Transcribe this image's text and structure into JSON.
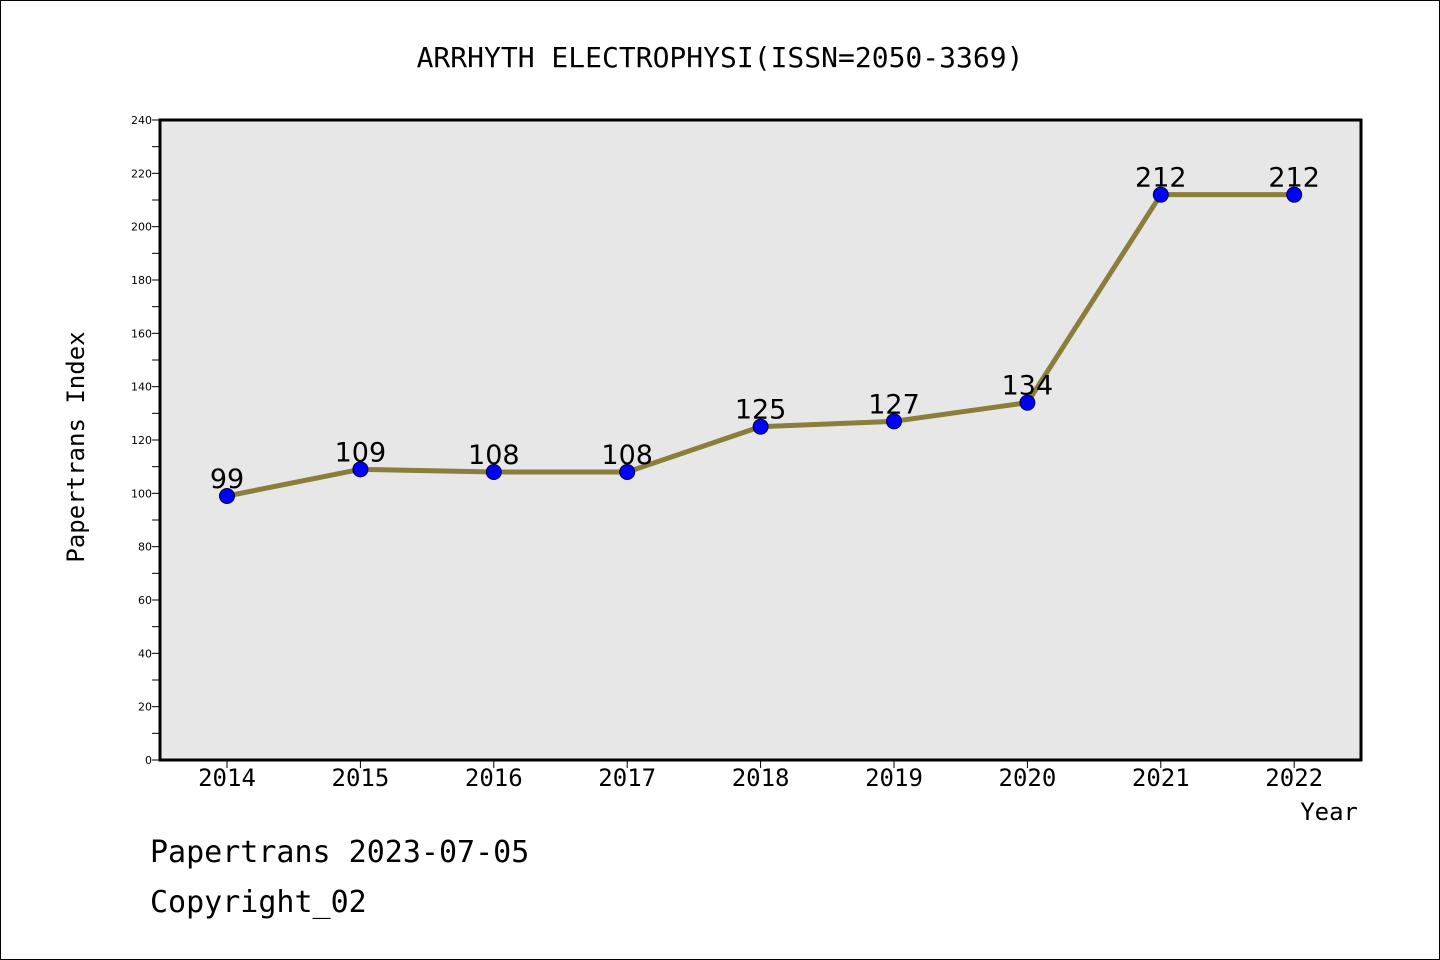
{
  "chart_data": {
    "type": "line",
    "title": "ARRHYTH ELECTROPHYSI(ISSN=2050-3369)",
    "xlabel": "Year",
    "ylabel": "Papertrans Index",
    "categories": [
      "2014",
      "2015",
      "2016",
      "2017",
      "2018",
      "2019",
      "2020",
      "2021",
      "2022"
    ],
    "series": [
      {
        "values": [
          99,
          109,
          108,
          108,
          125,
          127,
          134,
          212,
          212
        ]
      }
    ],
    "ylim": [
      0,
      240
    ],
    "y_ticks": [
      0,
      20,
      40,
      60,
      80,
      100,
      120,
      140,
      160,
      180,
      200,
      220,
      240
    ],
    "data_labels": true,
    "grid": false,
    "line_color": "#8b7d3a",
    "marker_color": "#0000ff",
    "plot_background": "#e7e7e7"
  },
  "footer": {
    "date_line": "Papertrans 2023-07-05",
    "copyright_line": "Copyright_02"
  }
}
